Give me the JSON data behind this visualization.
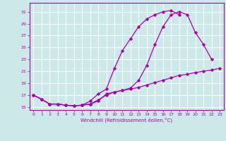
{
  "xlabel": "Windchill (Refroidissement éolien,°C)",
  "bg_color": "#cce8e8",
  "grid_color": "#ffffff",
  "line_color": "#aa00aa",
  "xlim": [
    -0.5,
    23.5
  ],
  "ylim": [
    14.5,
    32.5
  ],
  "yticks": [
    15,
    17,
    19,
    21,
    23,
    25,
    27,
    29,
    31
  ],
  "xticks": [
    0,
    1,
    2,
    3,
    4,
    5,
    6,
    7,
    8,
    9,
    10,
    11,
    12,
    13,
    14,
    15,
    16,
    17,
    18,
    19,
    20,
    21,
    22,
    23
  ],
  "curve1_x": [
    0,
    1,
    2,
    3,
    4,
    5,
    6,
    7,
    8,
    9,
    10,
    11,
    12,
    13,
    14,
    15,
    16,
    17,
    18,
    19,
    20,
    21,
    22
  ],
  "curve1_y": [
    17,
    16.3,
    15.5,
    15.5,
    15.3,
    15.2,
    15.3,
    15.5,
    16.0,
    17.2,
    17.5,
    17.8,
    18.2,
    19.5,
    22.0,
    25.5,
    28.5,
    30.5,
    31.0,
    30.5,
    27.5,
    25.5,
    23.0
  ],
  "curve2_x": [
    0,
    1,
    2,
    3,
    4,
    5,
    6,
    7,
    8,
    9,
    10,
    11,
    12,
    13,
    14,
    15,
    16,
    17,
    18
  ],
  "curve2_y": [
    17,
    16.3,
    15.5,
    15.5,
    15.3,
    15.2,
    15.3,
    16.0,
    17.2,
    18.0,
    21.5,
    24.5,
    26.5,
    28.5,
    29.8,
    30.5,
    31.0,
    31.2,
    30.5
  ],
  "curve3_x": [
    0,
    1,
    2,
    3,
    4,
    5,
    6,
    7,
    8,
    9,
    10,
    11,
    12,
    13,
    14,
    15,
    16,
    17,
    18,
    19,
    20,
    21,
    22,
    23
  ],
  "curve3_y": [
    17,
    16.3,
    15.5,
    15.5,
    15.3,
    15.2,
    15.3,
    15.5,
    16.2,
    17.0,
    17.5,
    17.8,
    18.0,
    18.3,
    18.7,
    19.1,
    19.5,
    19.9,
    20.3,
    20.5,
    20.8,
    21.0,
    21.2,
    21.5
  ]
}
